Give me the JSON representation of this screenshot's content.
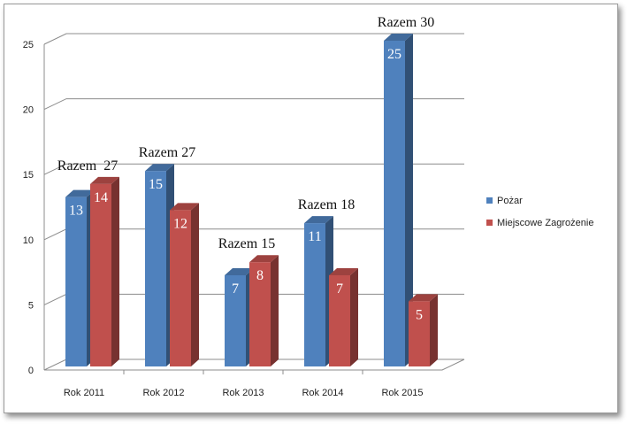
{
  "chart_data": {
    "type": "bar",
    "categories": [
      "Rok 2011",
      "Rok 2012",
      "Rok 2013",
      "Rok 2014",
      "Rok 2015"
    ],
    "series": [
      {
        "name": "Pożar",
        "values": [
          13,
          15,
          7,
          11,
          25
        ],
        "color": "#4F81BD"
      },
      {
        "name": "Miejscowe Zagrożenie",
        "values": [
          14,
          12,
          8,
          7,
          5
        ],
        "color": "#C0504D"
      }
    ],
    "totals": [
      "Razem  27",
      "Razem 27",
      "Razem 15",
      "Razem 18",
      "Razem 30"
    ],
    "ylim": [
      0,
      25
    ],
    "yticks": [
      0,
      5,
      10,
      15,
      20,
      25
    ],
    "grid": true,
    "legend_position": "right",
    "three_d": true
  }
}
